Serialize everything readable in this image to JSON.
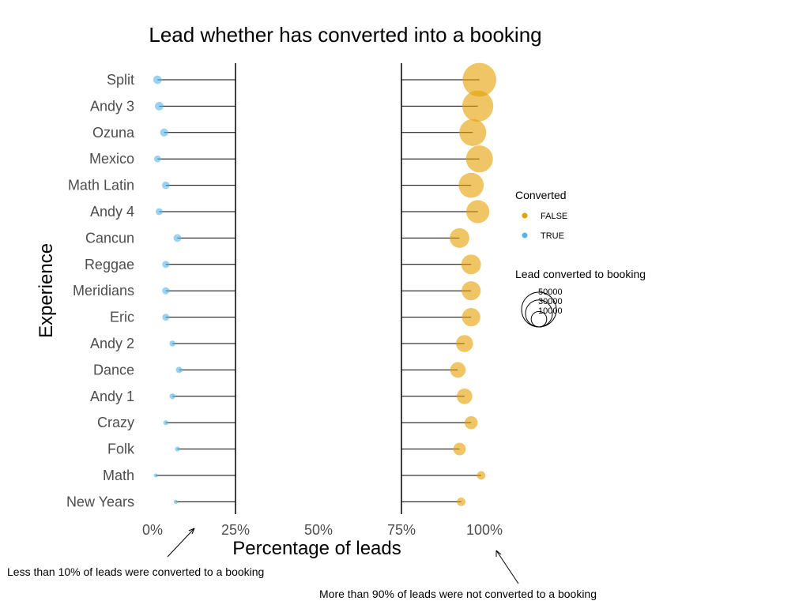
{
  "chart_data": {
    "type": "scatter",
    "title": "Lead whether has converted into a booking",
    "xlabel": "Percentage of leads",
    "ylabel": "Experience",
    "xlim": [
      0,
      100
    ],
    "x_ticks": [
      "0%",
      "25%",
      "50%",
      "75%",
      "100%"
    ],
    "x_tick_values": [
      0,
      25,
      50,
      75,
      100
    ],
    "categories": [
      "Split",
      "Andy 3",
      "Ozuna",
      "Mexico",
      "Math Latin",
      "Andy 4",
      "Cancun",
      "Reggae",
      "Meridians",
      "Eric",
      "Andy 2",
      "Dance",
      "Andy 1",
      "Crazy",
      "Folk",
      "Math",
      "New Years"
    ],
    "segment_ends": [
      25,
      75
    ],
    "series": [
      {
        "name": "TRUE",
        "color": "#56B4E9",
        "values": [
          1.5,
          2,
          3.5,
          1.5,
          4,
          2,
          7.5,
          4,
          4,
          4,
          6,
          8,
          6,
          4,
          7.5,
          1,
          7
        ],
        "sizes": [
          3000,
          3000,
          2700,
          1900,
          2400,
          2000,
          2500,
          2100,
          2100,
          2000,
          1500,
          1700,
          1400,
          1000,
          1000,
          600,
          700
        ]
      },
      {
        "name": "FALSE",
        "color": "#E69F00",
        "values": [
          98.5,
          98,
          96.5,
          98.5,
          96,
          98,
          92.5,
          96,
          96,
          96,
          94,
          92,
          94,
          96,
          92.5,
          99,
          93
        ],
        "sizes": [
          47000,
          40000,
          30000,
          30000,
          26000,
          22000,
          16000,
          16000,
          15000,
          14000,
          12000,
          10000,
          10000,
          7000,
          6500,
          3000,
          3000
        ]
      }
    ],
    "legend": {
      "color_title": "Converted",
      "color_entries": [
        "FALSE",
        "TRUE"
      ],
      "size_title": "Lead converted to booking",
      "size_entries": [
        "50000",
        "30000",
        "10000"
      ],
      "size_values": [
        50000,
        30000,
        10000
      ],
      "placement": "right"
    },
    "annotations": [
      "Less than 10% of leads were converted to a booking",
      "More than 90% of leads were not converted to a booking"
    ],
    "grid": false
  }
}
